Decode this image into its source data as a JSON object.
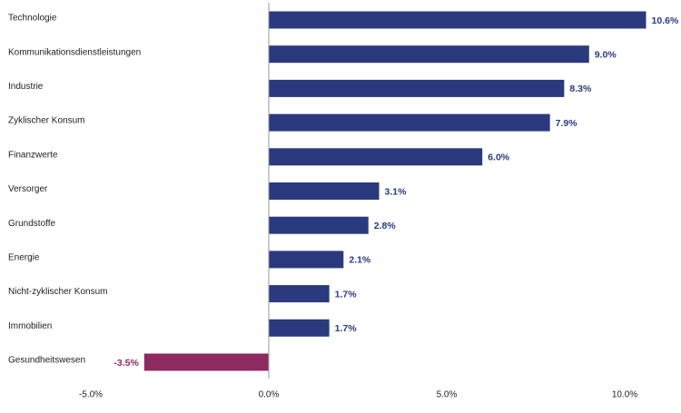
{
  "chart_data": {
    "type": "bar",
    "orientation": "horizontal",
    "title": "",
    "xlabel": "",
    "ylabel": "",
    "categories": [
      "Technologie",
      "Kommunikationsdienstleistungen",
      "Industrie",
      "Zyklischer Konsum",
      "Finanzwerte",
      "Versorger",
      "Grundstoffe",
      "Energie",
      "Nicht-zyklischer Konsum",
      "Immobilien",
      "Gesundheitswesen"
    ],
    "values": [
      10.6,
      9.0,
      8.3,
      7.9,
      6.0,
      3.1,
      2.8,
      2.1,
      1.7,
      1.7,
      -3.5
    ],
    "value_labels": [
      "10.6%",
      "9.0%",
      "8.3%",
      "7.9%",
      "6.0%",
      "3.1%",
      "2.8%",
      "2.1%",
      "1.7%",
      "1.7%",
      "-3.5%"
    ],
    "xlim": [
      -5,
      10
    ],
    "x_ticks": [
      -5,
      0,
      5,
      10
    ],
    "x_tick_labels": [
      "-5.0%",
      "0.0%",
      "5.0%",
      "10.0%"
    ],
    "grid": false,
    "legend": "none",
    "colors": {
      "positive": "#2b3a7e",
      "negative": "#8e2a5f",
      "positive_label": "#2b3a7e",
      "negative_label": "#8e2a5f",
      "axis": "#999999",
      "text": "#222222"
    }
  }
}
